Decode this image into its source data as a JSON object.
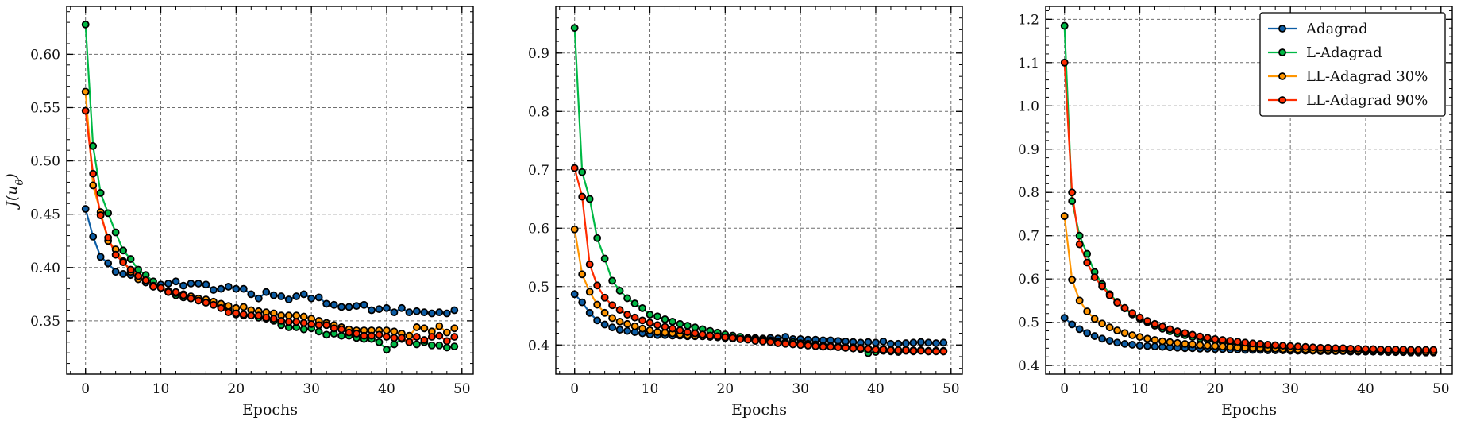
{
  "colors": {
    "Adagrad": "#0c5da5",
    "L-Adagrad": "#00b945",
    "LL-Adagrad 30%": "#ff9500",
    "LL-Adagrad 90%": "#ff2c00"
  },
  "chart_data": [
    {
      "type": "line",
      "xlabel": "Epochs",
      "ylabel": "J(u_θ)",
      "xlim": [
        -2.5,
        51.5
      ],
      "ylim": [
        0.3,
        0.645
      ],
      "xticks": [
        0,
        10,
        20,
        30,
        40,
        50
      ],
      "yticks": [
        0.35,
        0.4,
        0.45,
        0.5,
        0.55,
        0.6
      ],
      "grid": true,
      "legend": false,
      "x": [
        0,
        1,
        2,
        3,
        4,
        5,
        6,
        7,
        8,
        9,
        10,
        11,
        12,
        13,
        14,
        15,
        16,
        17,
        18,
        19,
        20,
        21,
        22,
        23,
        24,
        25,
        26,
        27,
        28,
        29,
        30,
        31,
        32,
        33,
        34,
        35,
        36,
        37,
        38,
        39,
        40,
        41,
        42,
        43,
        44,
        45,
        46,
        47,
        48,
        49
      ],
      "series": [
        {
          "name": "Adagrad",
          "values": [
            0.455,
            0.429,
            0.41,
            0.404,
            0.396,
            0.394,
            0.393,
            0.391,
            0.386,
            0.383,
            0.384,
            0.385,
            0.387,
            0.383,
            0.385,
            0.385,
            0.384,
            0.379,
            0.38,
            0.382,
            0.38,
            0.38,
            0.375,
            0.371,
            0.377,
            0.374,
            0.373,
            0.37,
            0.373,
            0.375,
            0.371,
            0.372,
            0.366,
            0.365,
            0.363,
            0.363,
            0.364,
            0.365,
            0.36,
            0.361,
            0.362,
            0.358,
            0.362,
            0.358,
            0.359,
            0.358,
            0.357,
            0.358,
            0.357,
            0.36
          ]
        },
        {
          "name": "L-Adagrad",
          "values": [
            0.628,
            0.514,
            0.47,
            0.451,
            0.433,
            0.416,
            0.408,
            0.398,
            0.393,
            0.387,
            0.381,
            0.377,
            0.374,
            0.372,
            0.371,
            0.369,
            0.368,
            0.365,
            0.363,
            0.36,
            0.356,
            0.355,
            0.355,
            0.353,
            0.352,
            0.35,
            0.346,
            0.344,
            0.344,
            0.342,
            0.343,
            0.34,
            0.337,
            0.338,
            0.336,
            0.336,
            0.334,
            0.333,
            0.333,
            0.33,
            0.323,
            0.328,
            0.333,
            0.33,
            0.328,
            0.33,
            0.327,
            0.327,
            0.325,
            0.326
          ]
        },
        {
          "name": "LL-Adagrad 30%",
          "values": [
            0.565,
            0.477,
            0.452,
            0.425,
            0.417,
            0.406,
            0.396,
            0.389,
            0.388,
            0.383,
            0.381,
            0.378,
            0.376,
            0.375,
            0.373,
            0.371,
            0.37,
            0.368,
            0.366,
            0.364,
            0.362,
            0.363,
            0.36,
            0.359,
            0.358,
            0.357,
            0.355,
            0.355,
            0.355,
            0.354,
            0.352,
            0.35,
            0.348,
            0.346,
            0.344,
            0.342,
            0.341,
            0.341,
            0.341,
            0.341,
            0.341,
            0.34,
            0.338,
            0.336,
            0.344,
            0.343,
            0.34,
            0.345,
            0.339,
            0.343
          ]
        },
        {
          "name": "LL-Adagrad 90%",
          "values": [
            0.547,
            0.488,
            0.449,
            0.428,
            0.412,
            0.405,
            0.398,
            0.392,
            0.388,
            0.382,
            0.381,
            0.377,
            0.377,
            0.374,
            0.371,
            0.369,
            0.367,
            0.365,
            0.362,
            0.358,
            0.357,
            0.356,
            0.355,
            0.355,
            0.353,
            0.352,
            0.35,
            0.349,
            0.349,
            0.348,
            0.347,
            0.346,
            0.346,
            0.343,
            0.342,
            0.339,
            0.338,
            0.336,
            0.336,
            0.337,
            0.335,
            0.334,
            0.334,
            0.33,
            0.335,
            0.332,
            0.335,
            0.336,
            0.331,
            0.335
          ]
        }
      ]
    },
    {
      "type": "line",
      "xlabel": "Epochs",
      "ylabel": "",
      "xlim": [
        -2.5,
        51.5
      ],
      "ylim": [
        0.35,
        0.98
      ],
      "xticks": [
        0,
        10,
        20,
        30,
        40,
        50
      ],
      "yticks": [
        0.4,
        0.5,
        0.6,
        0.7,
        0.8,
        0.9
      ],
      "grid": true,
      "legend": false,
      "x": [
        0,
        1,
        2,
        3,
        4,
        5,
        6,
        7,
        8,
        9,
        10,
        11,
        12,
        13,
        14,
        15,
        16,
        17,
        18,
        19,
        20,
        21,
        22,
        23,
        24,
        25,
        26,
        27,
        28,
        29,
        30,
        31,
        32,
        33,
        34,
        35,
        36,
        37,
        38,
        39,
        40,
        41,
        42,
        43,
        44,
        45,
        46,
        47,
        48,
        49
      ],
      "series": [
        {
          "name": "Adagrad",
          "values": [
            0.487,
            0.473,
            0.455,
            0.442,
            0.435,
            0.43,
            0.426,
            0.424,
            0.422,
            0.42,
            0.418,
            0.417,
            0.417,
            0.416,
            0.416,
            0.415,
            0.415,
            0.415,
            0.414,
            0.414,
            0.413,
            0.413,
            0.413,
            0.412,
            0.412,
            0.411,
            0.412,
            0.411,
            0.414,
            0.41,
            0.41,
            0.409,
            0.409,
            0.408,
            0.408,
            0.407,
            0.406,
            0.405,
            0.404,
            0.405,
            0.404,
            0.406,
            0.402,
            0.402,
            0.403,
            0.404,
            0.405,
            0.404,
            0.403,
            0.404
          ]
        },
        {
          "name": "L-Adagrad",
          "values": [
            0.943,
            0.696,
            0.65,
            0.583,
            0.548,
            0.51,
            0.493,
            0.48,
            0.471,
            0.463,
            0.452,
            0.449,
            0.444,
            0.44,
            0.436,
            0.433,
            0.43,
            0.427,
            0.424,
            0.421,
            0.418,
            0.416,
            0.414,
            0.412,
            0.411,
            0.41,
            0.408,
            0.406,
            0.405,
            0.405,
            0.403,
            0.402,
            0.401,
            0.399,
            0.398,
            0.397,
            0.396,
            0.395,
            0.393,
            0.386,
            0.388,
            0.39,
            0.389,
            0.388,
            0.39,
            0.389,
            0.391,
            0.389,
            0.39,
            0.39
          ]
        },
        {
          "name": "LL-Adagrad 30%",
          "values": [
            0.598,
            0.521,
            0.491,
            0.469,
            0.455,
            0.446,
            0.44,
            0.436,
            0.432,
            0.428,
            0.425,
            0.422,
            0.421,
            0.42,
            0.418,
            0.417,
            0.416,
            0.415,
            0.414,
            0.413,
            0.412,
            0.411,
            0.41,
            0.41,
            0.409,
            0.408,
            0.406,
            0.404,
            0.403,
            0.402,
            0.401,
            0.4,
            0.399,
            0.398,
            0.398,
            0.397,
            0.396,
            0.396,
            0.395,
            0.394,
            0.393,
            0.393,
            0.392,
            0.391,
            0.392,
            0.391,
            0.391,
            0.39,
            0.39,
            0.389
          ]
        },
        {
          "name": "LL-Adagrad 90%",
          "values": [
            0.703,
            0.654,
            0.538,
            0.502,
            0.481,
            0.468,
            0.46,
            0.452,
            0.447,
            0.442,
            0.438,
            0.434,
            0.431,
            0.428,
            0.425,
            0.422,
            0.42,
            0.418,
            0.416,
            0.415,
            0.413,
            0.412,
            0.41,
            0.409,
            0.407,
            0.406,
            0.405,
            0.403,
            0.402,
            0.401,
            0.4,
            0.399,
            0.398,
            0.397,
            0.397,
            0.396,
            0.395,
            0.394,
            0.394,
            0.393,
            0.392,
            0.392,
            0.391,
            0.391,
            0.391,
            0.39,
            0.39,
            0.389,
            0.389,
            0.389
          ]
        }
      ]
    },
    {
      "type": "line",
      "xlabel": "Epochs",
      "ylabel": "",
      "xlim": [
        -2.5,
        51.5
      ],
      "ylim": [
        0.38,
        1.23
      ],
      "xticks": [
        0,
        10,
        20,
        30,
        40,
        50
      ],
      "yticks": [
        0.4,
        0.5,
        0.6,
        0.7,
        0.8,
        0.9,
        1.0,
        1.1,
        1.2
      ],
      "grid": true,
      "legend": "top-right",
      "x": [
        0,
        1,
        2,
        3,
        4,
        5,
        6,
        7,
        8,
        9,
        10,
        11,
        12,
        13,
        14,
        15,
        16,
        17,
        18,
        19,
        20,
        21,
        22,
        23,
        24,
        25,
        26,
        27,
        28,
        29,
        30,
        31,
        32,
        33,
        34,
        35,
        36,
        37,
        38,
        39,
        40,
        41,
        42,
        43,
        44,
        45,
        46,
        47,
        48,
        49
      ],
      "series": [
        {
          "name": "Adagrad",
          "values": [
            0.51,
            0.495,
            0.484,
            0.475,
            0.468,
            0.462,
            0.457,
            0.453,
            0.45,
            0.448,
            0.446,
            0.445,
            0.444,
            0.443,
            0.442,
            0.441,
            0.44,
            0.44,
            0.439,
            0.439,
            0.438,
            0.438,
            0.437,
            0.437,
            0.436,
            0.436,
            0.436,
            0.435,
            0.435,
            0.435,
            0.434,
            0.434,
            0.434,
            0.434,
            0.433,
            0.433,
            0.433,
            0.433,
            0.432,
            0.432,
            0.432,
            0.432,
            0.432,
            0.432,
            0.431,
            0.431,
            0.431,
            0.431,
            0.431,
            0.431
          ]
        },
        {
          "name": "L-Adagrad",
          "values": [
            1.185,
            0.78,
            0.7,
            0.658,
            0.616,
            0.588,
            0.565,
            0.547,
            0.532,
            0.518,
            0.508,
            0.5,
            0.492,
            0.485,
            0.479,
            0.474,
            0.47,
            0.466,
            0.462,
            0.459,
            0.456,
            0.453,
            0.451,
            0.449,
            0.447,
            0.445,
            0.444,
            0.442,
            0.441,
            0.44,
            0.439,
            0.438,
            0.437,
            0.436,
            0.436,
            0.435,
            0.434,
            0.434,
            0.433,
            0.433,
            0.432,
            0.432,
            0.432,
            0.431,
            0.431,
            0.431,
            0.43,
            0.43,
            0.43,
            0.43
          ]
        },
        {
          "name": "LL-Adagrad 30%",
          "values": [
            0.745,
            0.598,
            0.55,
            0.525,
            0.508,
            0.497,
            0.488,
            0.481,
            0.475,
            0.47,
            0.466,
            0.462,
            0.459,
            0.456,
            0.454,
            0.452,
            0.45,
            0.449,
            0.447,
            0.446,
            0.445,
            0.444,
            0.443,
            0.442,
            0.441,
            0.44,
            0.44,
            0.439,
            0.439,
            0.438,
            0.438,
            0.437,
            0.437,
            0.436,
            0.436,
            0.436,
            0.435,
            0.435,
            0.435,
            0.434,
            0.434,
            0.434,
            0.434,
            0.433,
            0.433,
            0.433,
            0.433,
            0.433,
            0.432,
            0.432
          ]
        },
        {
          "name": "LL-Adagrad 90%",
          "values": [
            1.1,
            0.8,
            0.68,
            0.638,
            0.604,
            0.583,
            0.562,
            0.545,
            0.533,
            0.521,
            0.511,
            0.503,
            0.496,
            0.49,
            0.484,
            0.479,
            0.475,
            0.471,
            0.467,
            0.464,
            0.461,
            0.459,
            0.457,
            0.455,
            0.453,
            0.451,
            0.45,
            0.448,
            0.447,
            0.446,
            0.445,
            0.444,
            0.443,
            0.442,
            0.441,
            0.441,
            0.44,
            0.44,
            0.439,
            0.439,
            0.438,
            0.438,
            0.437,
            0.437,
            0.437,
            0.437,
            0.436,
            0.436,
            0.436,
            0.436
          ]
        }
      ]
    }
  ]
}
